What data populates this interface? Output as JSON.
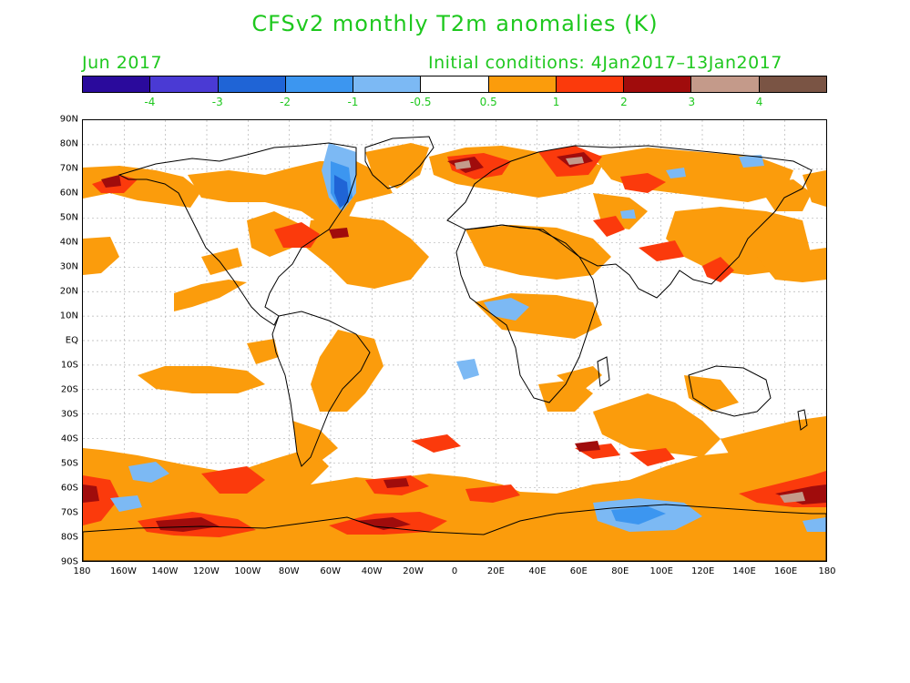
{
  "title": "CFSv2 monthly T2m anomalies (K)",
  "valid_month": "Jun 2017",
  "initial_conditions": "Initial conditions: 4Jan2017–13Jan2017",
  "colorbar": {
    "colors": [
      "#2a0a9c",
      "#4a3ad4",
      "#1f64d6",
      "#3c96f0",
      "#7cb9f4",
      "#ffffff",
      "#fb9c0c",
      "#fb3a0c",
      "#a00c0c",
      "#c49a8a",
      "#7a5444"
    ],
    "labels": [
      "-4",
      "-3",
      "-2",
      "-1",
      "-0.5",
      "0.5",
      "1",
      "2",
      "3",
      "4"
    ]
  },
  "map": {
    "lat_labels": [
      "90N",
      "80N",
      "70N",
      "60N",
      "50N",
      "40N",
      "30N",
      "20N",
      "10N",
      "EQ",
      "10S",
      "20S",
      "30S",
      "40S",
      "50S",
      "60S",
      "70S",
      "80S",
      "90S"
    ],
    "lon_labels": [
      "180",
      "160W",
      "140W",
      "120W",
      "100W",
      "80W",
      "60W",
      "40W",
      "20W",
      "0",
      "20E",
      "40E",
      "60E",
      "80E",
      "100E",
      "120E",
      "140E",
      "160E",
      "180"
    ],
    "colors": {
      "land_outline": "#000000",
      "grid": "#b4b4b4",
      "title_text": "#1ec81e"
    }
  }
}
